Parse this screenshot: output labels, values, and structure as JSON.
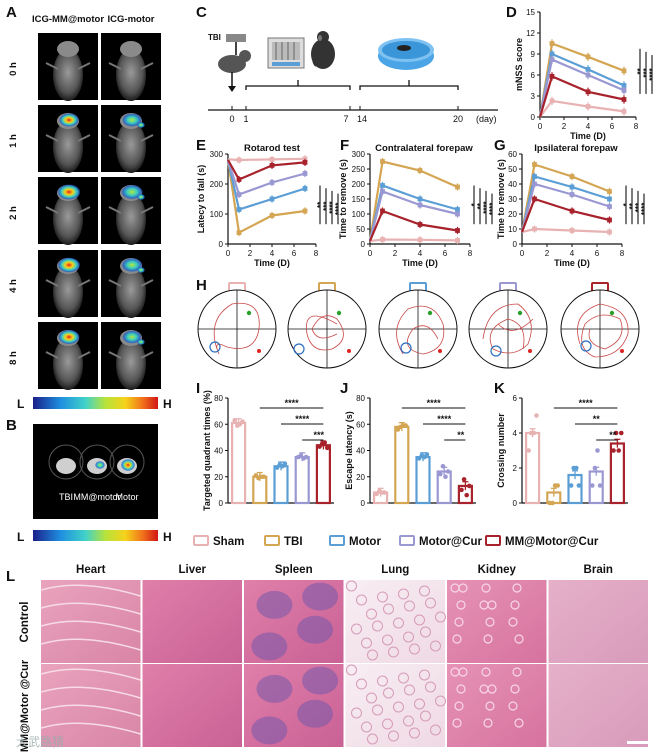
{
  "panels": {
    "A": {
      "label": "A",
      "col_headers": [
        "ICG-MM@motor",
        "ICG-motor"
      ],
      "row_labels": [
        "0 h",
        "1 h",
        "2 h",
        "4 h",
        "8 h"
      ],
      "scale_low": "L",
      "scale_high": "H"
    },
    "B": {
      "label": "B",
      "labels": [
        "TBI",
        "MM@motor",
        "Motor"
      ],
      "scale_low": "L",
      "scale_high": "H"
    },
    "C": {
      "label": "C",
      "tbi_label": "TBI",
      "timeline_ticks": [
        "0",
        "1",
        "7",
        "14",
        "20"
      ],
      "unit": "(day)"
    },
    "H": {
      "label": "H"
    },
    "L": {
      "label": "L",
      "tissues": [
        "Heart",
        "Liver",
        "Spleen",
        "Lung",
        "Kidney",
        "Brain"
      ],
      "groups": [
        "Control",
        "MM@Motor @Cur"
      ]
    }
  },
  "colors": {
    "Sham": "#e8b2b2",
    "TBI": "#d4a553",
    "Motor": "#5b9ed6",
    "Motor@Cur": "#9a98d2",
    "MM@Motor@Cur": "#a8222c"
  },
  "legend": {
    "items": [
      "Sham",
      "TBI",
      "Motor",
      "Motor@Cur",
      "MM@Motor@Cur"
    ]
  },
  "watermark": "大武路猜",
  "chart_data": [
    {
      "panel": "D",
      "type": "line",
      "title": "",
      "xlabel": "Time (D)",
      "ylabel": "mNSS score",
      "xlim": [
        0,
        8
      ],
      "ylim": [
        0,
        15
      ],
      "xticks": [
        0,
        2,
        4,
        6,
        8
      ],
      "yticks": [
        0,
        3,
        6,
        9,
        12,
        15
      ],
      "x": [
        0,
        1,
        4,
        7
      ],
      "series": [
        {
          "name": "Sham",
          "values": [
            0,
            2.3,
            1.5,
            0.8
          ]
        },
        {
          "name": "TBI",
          "values": [
            0,
            10.5,
            8.6,
            6.6
          ]
        },
        {
          "name": "Motor",
          "values": [
            0,
            9.0,
            6.8,
            4.5
          ]
        },
        {
          "name": "Motor@Cur",
          "values": [
            0,
            8.2,
            6.0,
            3.8
          ]
        },
        {
          "name": "MM@Motor@Cur",
          "values": [
            0,
            5.8,
            3.6,
            2.5
          ]
        }
      ],
      "significance": [
        "**",
        "***",
        "****"
      ]
    },
    {
      "panel": "E",
      "type": "line",
      "title": "Rotarod test",
      "xlabel": "Time (D)",
      "ylabel": "Latecy to fall (s)",
      "xlim": [
        0,
        8
      ],
      "ylim": [
        0,
        300
      ],
      "xticks": [
        0,
        2,
        4,
        6,
        8
      ],
      "yticks": [
        0,
        100,
        200,
        300
      ],
      "x": [
        0,
        1,
        4,
        7
      ],
      "series": [
        {
          "name": "Sham",
          "values": [
            282,
            280,
            282,
            284
          ]
        },
        {
          "name": "TBI",
          "values": [
            280,
            38,
            95,
            110
          ]
        },
        {
          "name": "Motor",
          "values": [
            280,
            115,
            150,
            185
          ]
        },
        {
          "name": "Motor@Cur",
          "values": [
            280,
            165,
            205,
            235
          ]
        },
        {
          "name": "MM@Motor@Cur",
          "values": [
            280,
            215,
            262,
            272
          ]
        }
      ],
      "significance": [
        "**",
        "***",
        "****",
        "****"
      ]
    },
    {
      "panel": "F",
      "type": "line",
      "title": "Contralateral forepaw",
      "xlabel": "Time (D)",
      "ylabel": "Time to remove (s)",
      "xlim": [
        0,
        8
      ],
      "ylim": [
        0,
        300
      ],
      "xticks": [
        0,
        2,
        4,
        6,
        8
      ],
      "yticks": [
        0,
        50,
        100,
        150,
        200,
        250,
        300
      ],
      "x": [
        0,
        1,
        4,
        7
      ],
      "series": [
        {
          "name": "Sham",
          "values": [
            10,
            15,
            14,
            12
          ]
        },
        {
          "name": "TBI",
          "values": [
            10,
            275,
            245,
            190
          ]
        },
        {
          "name": "Motor",
          "values": [
            10,
            195,
            150,
            115
          ]
        },
        {
          "name": "Motor@Cur",
          "values": [
            10,
            175,
            130,
            100
          ]
        },
        {
          "name": "MM@Motor@Cur",
          "values": [
            10,
            110,
            65,
            45
          ]
        }
      ],
      "significance": [
        "*",
        "**",
        "****",
        "****"
      ]
    },
    {
      "panel": "G",
      "type": "line",
      "title": "Ipsilateral forepaw",
      "xlabel": "Time (D)",
      "ylabel": "Time to remove (s)",
      "xlim": [
        0,
        8
      ],
      "ylim": [
        0,
        60
      ],
      "xticks": [
        0,
        2,
        4,
        6,
        8
      ],
      "yticks": [
        0,
        10,
        20,
        30,
        40,
        50,
        60
      ],
      "x": [
        0,
        1,
        4,
        7
      ],
      "series": [
        {
          "name": "Sham",
          "values": [
            8,
            10,
            9,
            8
          ]
        },
        {
          "name": "TBI",
          "values": [
            8,
            53,
            45,
            35
          ]
        },
        {
          "name": "Motor",
          "values": [
            8,
            45,
            38,
            30
          ]
        },
        {
          "name": "Motor@Cur",
          "values": [
            8,
            40,
            33,
            25
          ]
        },
        {
          "name": "MM@Motor@Cur",
          "values": [
            8,
            30,
            22,
            16
          ]
        }
      ],
      "significance": [
        "*",
        "**",
        "***",
        "****"
      ]
    },
    {
      "panel": "I",
      "type": "bar",
      "title": "",
      "xlabel": "",
      "ylabel": "Targeted quadrant times (%)",
      "ylim": [
        0,
        80
      ],
      "yticks": [
        0,
        20,
        40,
        60,
        80
      ],
      "categories": [
        "Sham",
        "TBI",
        "Motor",
        "Motor@Cur",
        "MM@Motor@Cur"
      ],
      "values": [
        61,
        20,
        28,
        35,
        44
      ],
      "points": [
        [
          63,
          59,
          60,
          62
        ],
        [
          21,
          19,
          20,
          20
        ],
        [
          27,
          29,
          28,
          30
        ],
        [
          35,
          36,
          34,
          35
        ],
        [
          43,
          45,
          46,
          42
        ]
      ],
      "significance": [
        "****",
        "****",
        "***"
      ]
    },
    {
      "panel": "J",
      "type": "bar",
      "title": "",
      "xlabel": "",
      "ylabel": "Escape latency (s)",
      "ylim": [
        0,
        80
      ],
      "yticks": [
        0,
        20,
        40,
        60,
        80
      ],
      "categories": [
        "Sham",
        "TBI",
        "Motor",
        "Motor@Cur",
        "MM@Motor@Cur"
      ],
      "values": [
        8,
        58,
        35,
        24,
        13
      ],
      "points": [
        [
          7,
          9,
          8,
          8
        ],
        [
          56,
          58,
          59,
          59
        ],
        [
          34,
          36,
          35,
          37
        ],
        [
          22,
          28,
          20,
          24
        ],
        [
          10,
          18,
          6,
          13
        ]
      ],
      "significance": [
        "****",
        "****",
        "**"
      ]
    },
    {
      "panel": "K",
      "type": "bar",
      "title": "",
      "xlabel": "",
      "ylabel": "Crossing number",
      "ylim": [
        0,
        6
      ],
      "yticks": [
        0,
        2,
        4,
        6
      ],
      "categories": [
        "Sham",
        "TBI",
        "Motor",
        "Motor@Cur",
        "MM@Motor@Cur"
      ],
      "values": [
        4.0,
        0.6,
        1.6,
        1.8,
        3.4
      ],
      "points": [
        [
          3,
          4,
          4,
          5
        ],
        [
          0,
          0,
          1,
          1
        ],
        [
          1,
          2,
          2,
          1
        ],
        [
          1,
          2,
          3,
          1
        ],
        [
          3,
          4,
          3,
          4
        ]
      ],
      "significance": [
        "****",
        "**",
        "**"
      ]
    }
  ]
}
